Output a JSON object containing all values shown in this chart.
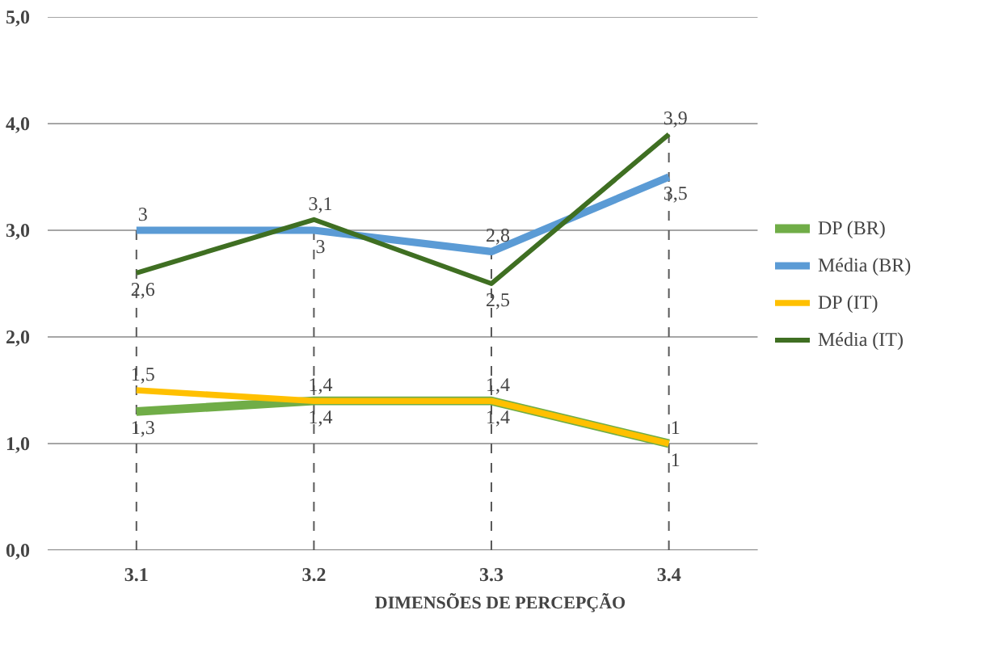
{
  "chart_data": {
    "type": "line",
    "xlabel": "DIMENSÕES DE PERCEPÇÃO",
    "categories": [
      "3.1",
      "3.2",
      "3.3",
      "3.4"
    ],
    "series": [
      {
        "name": "DP (BR)",
        "color": "#70ad47",
        "values": [
          1.3,
          1.4,
          1.4,
          1
        ],
        "value_labels": [
          "1,3",
          "1,4",
          "1,4",
          "1"
        ]
      },
      {
        "name": "Média (BR)",
        "color": "#5b9bd5",
        "values": [
          3,
          3,
          2.8,
          3.5
        ],
        "value_labels": [
          "3",
          "3",
          "2,8",
          "3,5"
        ]
      },
      {
        "name": "DP (IT)",
        "color": "#ffc000",
        "values": [
          1.5,
          1.4,
          1.4,
          1
        ],
        "value_labels": [
          "1,5",
          "1,4",
          "1,4",
          "1"
        ]
      },
      {
        "name": "Média (IT)",
        "color": "#3f6f22",
        "values": [
          2.6,
          3.1,
          2.5,
          3.9
        ],
        "value_labels": [
          "2,6",
          "3,1",
          "2,5",
          "3,9"
        ]
      }
    ],
    "ylim": [
      0,
      5
    ],
    "yticks": [
      {
        "value": 0,
        "label": "0,0"
      },
      {
        "value": 1,
        "label": "1,0"
      },
      {
        "value": 2,
        "label": "2,0"
      },
      {
        "value": 3,
        "label": "3,0"
      },
      {
        "value": 4,
        "label": "4,0"
      },
      {
        "value": 5,
        "label": "5,0"
      }
    ],
    "ref_lines": [
      {
        "axis": "x",
        "value": "3.1",
        "color": "#595959",
        "line_style": "dashed"
      },
      {
        "axis": "x",
        "value": "3.2",
        "color": "#595959",
        "line_style": "dashed"
      },
      {
        "axis": "x",
        "value": "3.3",
        "color": "#595959",
        "line_style": "dashed"
      },
      {
        "axis": "x",
        "value": "3.4",
        "color": "#595959",
        "line_style": "dashed"
      }
    ],
    "grid": "y",
    "legend": "right",
    "marker": "none",
    "line_style": "solid"
  }
}
